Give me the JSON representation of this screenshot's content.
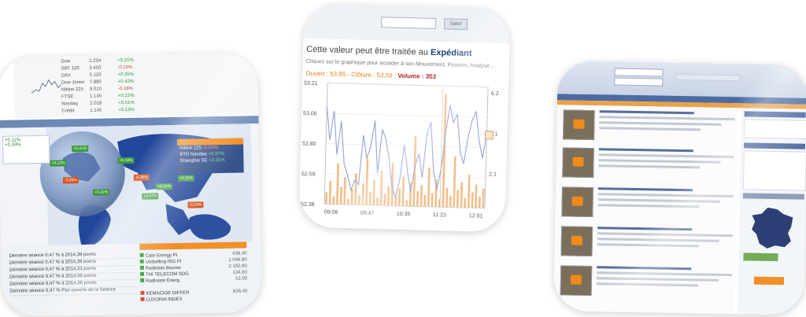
{
  "tile_market": {
    "table_rows": [
      {
        "name": "Dow",
        "v1": "1.234",
        "v2": "+0.21%"
      },
      {
        "name": "SBF 120",
        "v1": "3.450",
        "v2": "-0.15%"
      },
      {
        "name": "DAX",
        "v1": "5.120",
        "v2": "+0.35%"
      },
      {
        "name": "Dow Jones",
        "v1": "7.880",
        "v2": "+0.42%"
      },
      {
        "name": "Nikkei 225",
        "v1": "9.010",
        "v2": "-0.18%"
      },
      {
        "name": "FTSE",
        "v1": "1.145",
        "v2": "+0.22%"
      },
      {
        "name": "Nasdaq",
        "v1": "2.018",
        "v2": "+0.51%"
      },
      {
        "name": "Crédit",
        "v1": "1.145",
        "v2": "+0.13%"
      }
    ],
    "left_box": {
      "line1": "+0.11%",
      "line2": "+0.34%"
    },
    "panel": [
      {
        "name": "Nikkei 225",
        "change": "-0,55%",
        "tone": "r"
      },
      {
        "name": "BTR Nasdaq",
        "change": "+0,47%",
        "tone": "g"
      },
      {
        "name": "Shanghai SE",
        "change": "+0,31%",
        "tone": "g"
      }
    ],
    "map_labels": [
      "+0,12%",
      "+0,41%",
      "-0,55%",
      "+0,22%",
      "+0,18%",
      "-0,36%",
      "+0,47%",
      "+0,15%",
      "+0,31%",
      "-0,24%"
    ],
    "list": [
      "Dernière séance 0,47 % à 2014,39 points",
      "Dernière séance 0,47 % à 2014,39 points",
      "Dernière séance 0,47 % à 2014,33 points",
      "Dernière séance 0,47 % à 2014,58 points",
      "Dernière séance 0,47 % à 2014,36 points",
      "Dernière séance 0,47 % Pas ouverte de la Séance"
    ],
    "right_list": [
      {
        "name": "Cate Energy PI",
        "v": "438,40",
        "tone": "g"
      },
      {
        "name": "Unibelling ISG PI",
        "v": "1 046,80",
        "tone": "g"
      },
      {
        "name": "Radioisis Bourse",
        "v": "2 192,80",
        "tone": "g"
      },
      {
        "name": "THI TELECOM SDG",
        "v": "134,60",
        "tone": "g"
      },
      {
        "name": "Radioiste Energ.",
        "v": "52,00",
        "tone": "g"
      },
      {
        "name": "",
        "v": "",
        "tone": ""
      },
      {
        "name": "KEMACIGE DIFFER",
        "v": "836,40",
        "tone": "red"
      },
      {
        "name": "LUXORIA INDEX",
        "v": "",
        "tone": "red"
      }
    ]
  },
  "tile_chart": {
    "top_button": "Saisir",
    "headline_pre": "Cette valeur peut être traitée au ",
    "headline_bold": "Expédiant",
    "subline": "Cliquez sur le graphique pour accéder à son Mouvement, Position, Analyse ...",
    "ohlc_prefix": "Ouvert : 53,85 - Clôture : 53,59",
    "volume": "Volume : 353",
    "y_left": [
      "53.21",
      "53.00",
      "52.80",
      "52.59",
      "52.38"
    ],
    "y_right": [
      "6.2",
      "4.1",
      "2.1"
    ],
    "x_labels": [
      "09:08",
      "09:47",
      "10:35",
      "11:23",
      "12:01"
    ],
    "price": [
      53.05,
      52.82,
      53.02,
      52.72,
      52.95,
      52.66,
      52.58,
      52.48,
      52.55,
      52.52,
      52.86,
      52.7,
      52.78,
      52.96,
      52.6,
      52.9,
      52.84,
      52.7,
      52.5,
      52.44,
      52.56,
      52.8,
      52.62,
      52.48,
      52.66,
      52.74,
      52.58,
      52.88,
      52.96,
      52.62,
      52.5,
      52.64,
      52.9,
      53.08,
      52.96,
      53.02,
      52.76,
      52.68,
      52.86,
      52.98,
      53.04,
      52.84,
      52.72,
      52.9
    ],
    "volume_bars": [
      0.6,
      1.2,
      0.4,
      2.1,
      0.9,
      1.4,
      0.3,
      0.8,
      1.6,
      0.5,
      1.1,
      2.4,
      0.7,
      1.3,
      0.4,
      1.8,
      0.6,
      1.0,
      2.2,
      0.5,
      0.9,
      1.5,
      0.3,
      1.2,
      3.6,
      0.8,
      1.1,
      0.6,
      2.0,
      0.7,
      1.4,
      0.4,
      5.8,
      1.0,
      0.6,
      2.6,
      0.9,
      1.3,
      0.5,
      1.7,
      0.8,
      1.2,
      0.6,
      1.0
    ]
  },
  "tile_news": {
    "items": 5,
    "colors": {
      "nav": "#4d6ba3",
      "accent": "#f08a1c",
      "green": "#6aa84f"
    }
  },
  "colors": {
    "up": "#2c9e2c",
    "down": "#d04a2a",
    "chart_line": "#9aa6d8",
    "chart_volume": "#f0b070"
  }
}
